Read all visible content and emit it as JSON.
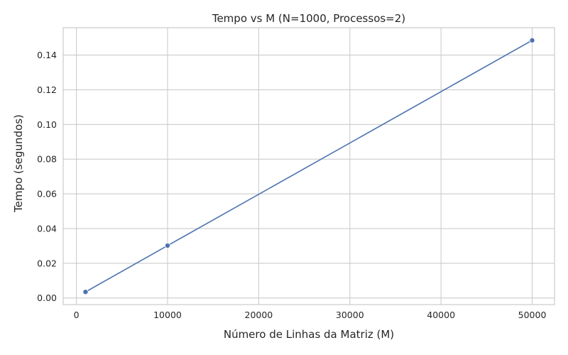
{
  "chart_data": {
    "type": "line",
    "title": "Tempo vs M (N=1000, Processos=2)",
    "xlabel": "Número de Linhas da Matriz (M)",
    "ylabel": "Tempo (segundos)",
    "x": [
      1000,
      10000,
      50000
    ],
    "series": [
      {
        "values": [
          0.0035,
          0.0302,
          0.1485
        ]
      }
    ],
    "xlim": [
      -1450,
      52450
    ],
    "ylim": [
      -0.0038,
      0.1558
    ],
    "xticks": [
      0,
      10000,
      20000,
      30000,
      40000,
      50000
    ],
    "xtick_labels": [
      "0",
      "10000",
      "20000",
      "30000",
      "40000",
      "50000"
    ],
    "yticks": [
      0.0,
      0.02,
      0.04,
      0.06,
      0.08,
      0.1,
      0.12,
      0.14
    ],
    "ytick_labels": [
      "0.00",
      "0.02",
      "0.04",
      "0.06",
      "0.08",
      "0.10",
      "0.12",
      "0.14"
    ],
    "grid": true,
    "legend": "none",
    "colors": {
      "line": "#4c72b0",
      "grid": "#cccccc",
      "frame": "#cccccc",
      "background": "#ffffff"
    }
  }
}
